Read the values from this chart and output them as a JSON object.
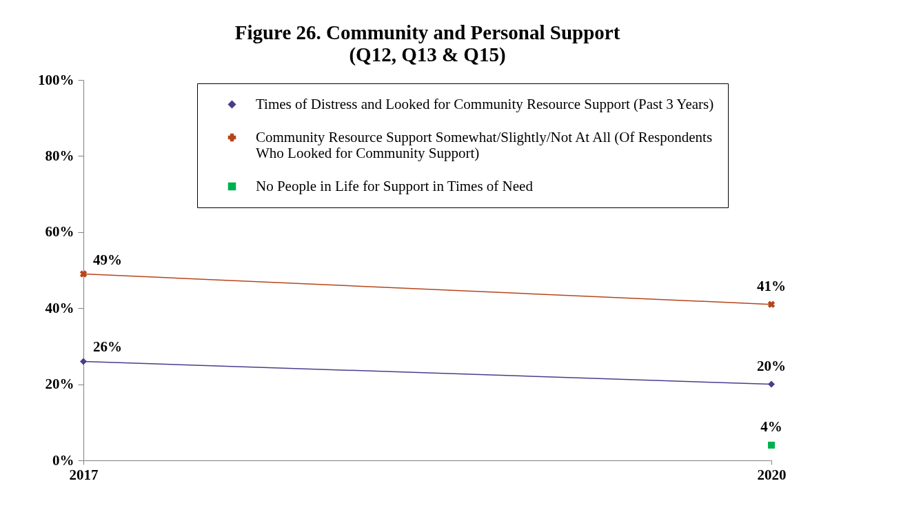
{
  "chart_data": {
    "type": "line",
    "title": "Figure 26. Community and Personal Support",
    "subtitle": "(Q12, Q13 & Q15)",
    "categories": [
      "2017",
      "2020"
    ],
    "series": [
      {
        "name": "Times of Distress and Looked for Community Resource Support (Past 3 Years)",
        "color": "#4a3c8c",
        "marker": "diamond",
        "values": [
          26,
          20
        ],
        "value_labels": [
          "26%",
          "20%"
        ]
      },
      {
        "name": "Community Resource Support Somewhat/Slightly/Not At All (Of Respondents Who Looked for Community Support)",
        "color": "#b5451b",
        "marker": "cross",
        "values": [
          49,
          41
        ],
        "value_labels": [
          "49%",
          "41%"
        ]
      },
      {
        "name": "No People in Life for Support in Times of Need",
        "color": "#00b050",
        "marker": "square",
        "values": [
          null,
          4
        ],
        "value_labels": [
          null,
          "4%"
        ]
      }
    ],
    "ylim": [
      0,
      100
    ],
    "yticks": [
      {
        "value": 0,
        "label": "0%"
      },
      {
        "value": 20,
        "label": "20%"
      },
      {
        "value": 40,
        "label": "40%"
      },
      {
        "value": 60,
        "label": "60%"
      },
      {
        "value": 80,
        "label": "80%"
      },
      {
        "value": 100,
        "label": "100%"
      }
    ],
    "legend": "top",
    "line_style": "solid"
  }
}
